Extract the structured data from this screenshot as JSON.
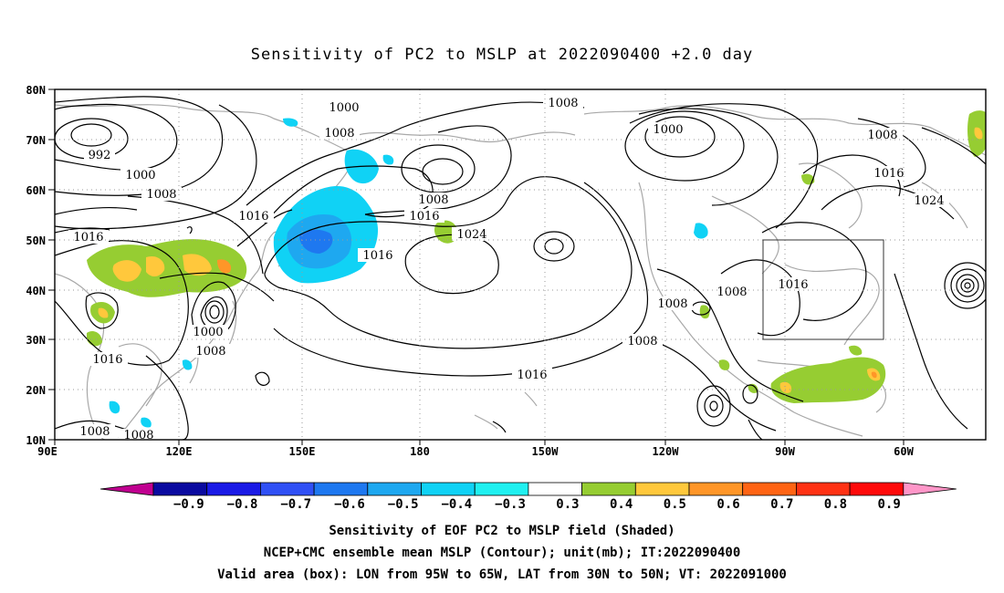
{
  "title": "Sensitivity of PC2 to MSLP at 2022090400 +2.0 day",
  "map": {
    "lat_ticks": [
      "80N",
      "70N",
      "60N",
      "50N",
      "40N",
      "30N",
      "20N",
      "10N"
    ],
    "lon_ticks": [
      "90E",
      "120E",
      "150E",
      "180",
      "150W",
      "120W",
      "90W",
      "60W"
    ],
    "contour_labels": [
      {
        "text": "1000"
      },
      {
        "text": "1008"
      },
      {
        "text": "992"
      },
      {
        "text": "1000"
      },
      {
        "text": "1008"
      },
      {
        "text": "1008"
      },
      {
        "text": "1016"
      },
      {
        "text": "1016"
      },
      {
        "text": "1008"
      },
      {
        "text": "1016"
      },
      {
        "text": "1024"
      },
      {
        "text": "1016"
      },
      {
        "text": "1000"
      },
      {
        "text": "1008"
      },
      {
        "text": "1016"
      },
      {
        "text": "1024"
      },
      {
        "text": "1008"
      },
      {
        "text": "1008"
      },
      {
        "text": "1016"
      },
      {
        "text": "1008"
      },
      {
        "text": "1016"
      },
      {
        "text": "1000"
      },
      {
        "text": "1008"
      },
      {
        "text": "1016"
      },
      {
        "text": "1008"
      },
      {
        "text": "1008"
      }
    ],
    "valid_box": {
      "lon_from": "95W",
      "lon_to": "65W",
      "lat_from": "30N",
      "lat_to": "50N"
    }
  },
  "colorbar": {
    "labels": [
      "-0.9",
      "-0.8",
      "-0.7",
      "-0.6",
      "-0.5",
      "-0.4",
      "-0.3",
      "0.3",
      "0.4",
      "0.5",
      "0.6",
      "0.7",
      "0.8",
      "0.9"
    ],
    "colors": [
      "#0a0aa0",
      "#1a1ae6",
      "#3050f5",
      "#1e78f0",
      "#1ea8f0",
      "#10d2f5",
      "#20f0f0",
      "#ffffff",
      "#96cd32",
      "#ffc83c",
      "#ff9628",
      "#ff6414",
      "#ff3214",
      "#ff0a0a"
    ],
    "left_end_color": "#c00090",
    "right_end_color": "#ff96c8"
  },
  "caption": {
    "line1": "Sensitivity of EOF PC2 to MSLP field (Shaded)",
    "line2": "NCEP+CMC ensemble mean MSLP (Contour); unit(mb); IT:2022090400",
    "line3": "Valid area (box): LON from 95W to 65W, LAT from 30N to 50N; VT: 2022091000"
  }
}
